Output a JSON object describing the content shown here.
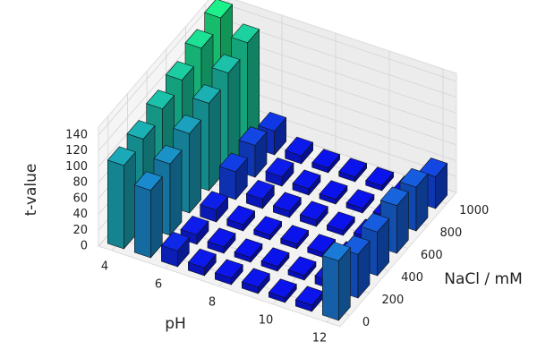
{
  "chart_data": {
    "type": "bar3d",
    "xlabel": "pH",
    "ylabel": "NaCl / mM",
    "zlabel": "t-value",
    "x": [
      4,
      5,
      6,
      7,
      8,
      9,
      10,
      11,
      12
    ],
    "y": [
      0,
      200,
      400,
      600,
      800,
      1000
    ],
    "values": [
      [
        105,
        85,
        20,
        10,
        8,
        8,
        6,
        8,
        75
      ],
      [
        110,
        90,
        12,
        8,
        6,
        6,
        6,
        10,
        55
      ],
      [
        120,
        100,
        15,
        8,
        6,
        6,
        6,
        8,
        55
      ],
      [
        128,
        110,
        35,
        12,
        8,
        8,
        6,
        8,
        60
      ],
      [
        140,
        120,
        40,
        12,
        8,
        6,
        6,
        6,
        55
      ],
      [
        150,
        130,
        30,
        10,
        6,
        6,
        6,
        6,
        40
      ]
    ],
    "xlim": [
      3.5,
      12.5
    ],
    "xticks": [
      4,
      6,
      8,
      10,
      12
    ],
    "ylim": [
      -100,
      1100
    ],
    "yticks": [
      0,
      200,
      400,
      600,
      800,
      1000
    ],
    "zlim": [
      0,
      150
    ],
    "zticks": [
      0,
      20,
      40,
      60,
      80,
      100,
      120,
      140
    ],
    "colormap": [
      "#0a0aee",
      "#1a7ad8",
      "#1cf08a"
    ],
    "grid": true
  }
}
